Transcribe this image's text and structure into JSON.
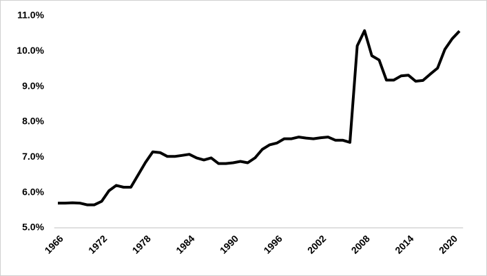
{
  "chart_data": {
    "type": "line",
    "categories": [
      "1966",
      null,
      null,
      null,
      null,
      null,
      "1972",
      null,
      null,
      null,
      null,
      null,
      "1978",
      null,
      null,
      null,
      null,
      null,
      "1984",
      null,
      null,
      null,
      null,
      null,
      "1990",
      null,
      null,
      null,
      null,
      null,
      "1996",
      null,
      null,
      null,
      null,
      null,
      "2002",
      null,
      null,
      null,
      null,
      null,
      "2008",
      null,
      null,
      null,
      null,
      null,
      "2014",
      null,
      null,
      null,
      null,
      null,
      "2020",
      null
    ],
    "values": [
      5.7,
      5.7,
      5.71,
      5.7,
      5.65,
      5.65,
      5.75,
      6.05,
      6.2,
      6.15,
      6.15,
      6.5,
      6.85,
      7.15,
      7.13,
      7.02,
      7.02,
      7.05,
      7.08,
      6.98,
      6.92,
      6.98,
      6.82,
      6.82,
      6.84,
      6.88,
      6.84,
      6.98,
      7.22,
      7.35,
      7.4,
      7.52,
      7.52,
      7.57,
      7.54,
      7.52,
      7.55,
      7.57,
      7.48,
      7.48,
      7.42,
      10.15,
      10.58,
      9.87,
      9.75,
      9.18,
      9.18,
      9.3,
      9.32,
      9.15,
      9.17,
      9.35,
      9.52,
      10.05,
      10.35,
      10.57
    ],
    "color": "#000000",
    "ylim": [
      5,
      11
    ],
    "yticks": [
      {
        "value": 5,
        "label": "5.0%"
      },
      {
        "value": 6,
        "label": "6.0%"
      },
      {
        "value": 7,
        "label": "7.0%"
      },
      {
        "value": 8,
        "label": "8.0%"
      },
      {
        "value": 9,
        "label": "9.0%"
      },
      {
        "value": 10,
        "label": "10.0%"
      },
      {
        "value": 11,
        "label": "11.0%"
      }
    ],
    "grid": false
  }
}
